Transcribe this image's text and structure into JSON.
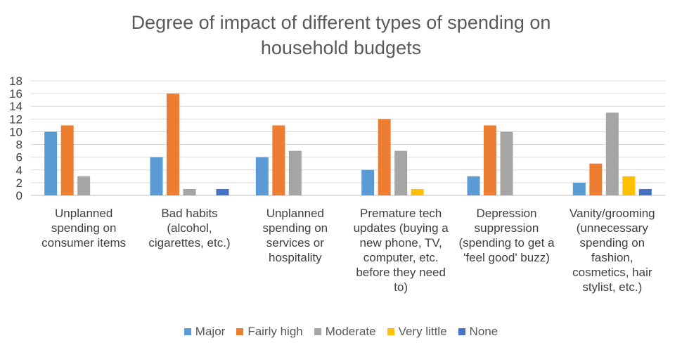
{
  "chart_data": {
    "type": "bar",
    "title": [
      "Degree of impact of different types of spending on",
      "household budgets"
    ],
    "categories": [
      [
        "Unplanned",
        "spending on",
        "consumer items"
      ],
      [
        "Bad habits",
        "(alcohol,",
        "cigarettes, etc.)"
      ],
      [
        "Unplanned",
        "spending on",
        "services or",
        "hospitality"
      ],
      [
        "Premature tech",
        "updates (buying a",
        "new phone, TV,",
        "computer, etc.",
        "before they need",
        "to)"
      ],
      [
        "Depression",
        "suppression",
        "(spending to get a",
        "'feel good' buzz)"
      ],
      [
        "Vanity/grooming",
        "(unnecessary",
        "spending on",
        "fashion,",
        "cosmetics, hair",
        "stylist, etc.)"
      ]
    ],
    "series": [
      {
        "name": "Major",
        "color": "#5B9BD5",
        "values": [
          10,
          6,
          6,
          4,
          3,
          2
        ]
      },
      {
        "name": "Fairly high",
        "color": "#ED7D31",
        "values": [
          11,
          16,
          11,
          12,
          11,
          5
        ]
      },
      {
        "name": "Moderate",
        "color": "#A5A5A5",
        "values": [
          3,
          1,
          7,
          7,
          10,
          13
        ]
      },
      {
        "name": "Very little",
        "color": "#FFC000",
        "values": [
          0,
          0,
          0,
          1,
          0,
          3
        ]
      },
      {
        "name": "None",
        "color": "#4472C4",
        "values": [
          0,
          1,
          0,
          0,
          0,
          1
        ]
      }
    ],
    "ylim": [
      0,
      18
    ],
    "yticks": [
      "0",
      "2",
      "4",
      "6",
      "8",
      "10",
      "12",
      "14",
      "16",
      "18"
    ],
    "grid": true,
    "legend_position": "bottom"
  }
}
